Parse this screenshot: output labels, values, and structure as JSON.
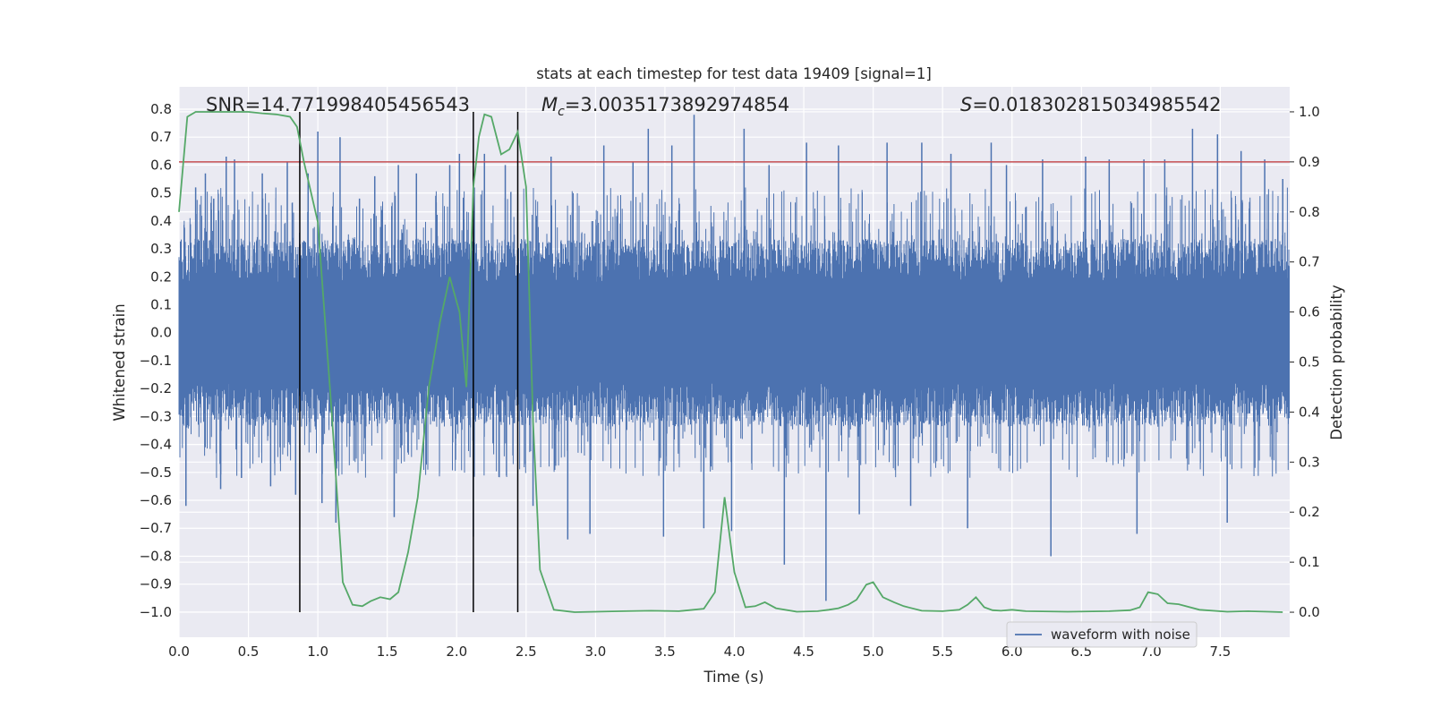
{
  "chart_data": {
    "type": "line",
    "title": "stats at each timestep for test data 19409 [signal=1]",
    "xlabel": "Time (s)",
    "ylabel_left": "Whitened strain",
    "ylabel_right": "Detection probability",
    "xlim": [
      0.0,
      8.0
    ],
    "ylim_left": [
      -1.09,
      0.88
    ],
    "ylim_right": [
      -0.05,
      1.05
    ],
    "x_ticks": [
      "0.0",
      "0.5",
      "1.0",
      "1.5",
      "2.0",
      "2.5",
      "3.0",
      "3.5",
      "4.0",
      "4.5",
      "5.0",
      "5.5",
      "6.0",
      "6.5",
      "7.0",
      "7.5"
    ],
    "y_ticks_left": [
      "0.8",
      "0.7",
      "0.6",
      "0.5",
      "0.4",
      "0.3",
      "0.2",
      "0.1",
      "0.0",
      "−0.1",
      "−0.2",
      "−0.3",
      "−0.4",
      "−0.5",
      "−0.6",
      "−0.7",
      "−0.8",
      "−0.9",
      "−1.0"
    ],
    "y_ticks_right": [
      "1.0",
      "0.9",
      "0.8",
      "0.7",
      "0.6",
      "0.5",
      "0.4",
      "0.3",
      "0.2",
      "0.1",
      "0.0"
    ],
    "grid": true,
    "legend": {
      "placement": "lower-right",
      "entries": [
        "waveform with noise"
      ]
    },
    "annotations": {
      "snr": "SNR=14.771998405456543",
      "mc_sym": "M",
      "mc_sub": "c",
      "mc_val": "=3.0035173892974854",
      "s_sym": "S",
      "s_val": "=0.018302815034985542"
    },
    "threshold_right": 0.9,
    "vertical_lines_x": [
      0.87,
      2.12,
      2.44
    ],
    "vertical_lines_range_right": [
      0.0,
      1.0
    ],
    "waveform": {
      "name": "waveform with noise",
      "envelope_typical": [
        -0.32,
        0.32
      ],
      "spike_peaks": [
        [
          0.05,
          -0.62
        ],
        [
          0.12,
          0.52
        ],
        [
          0.19,
          0.57
        ],
        [
          0.25,
          0.48
        ],
        [
          0.3,
          -0.56
        ],
        [
          0.34,
          0.63
        ],
        [
          0.4,
          0.62
        ],
        [
          0.45,
          -0.52
        ],
        [
          0.6,
          0.57
        ],
        [
          0.66,
          -0.55
        ],
        [
          0.78,
          0.61
        ],
        [
          0.84,
          -0.58
        ],
        [
          0.93,
          0.57
        ],
        [
          1.0,
          0.72
        ],
        [
          1.03,
          -0.61
        ],
        [
          1.13,
          -0.68
        ],
        [
          1.16,
          0.7
        ],
        [
          1.3,
          0.48
        ],
        [
          1.41,
          0.56
        ],
        [
          1.55,
          -0.66
        ],
        [
          1.58,
          0.6
        ],
        [
          1.71,
          0.57
        ],
        [
          1.85,
          0.49
        ],
        [
          1.95,
          0.6
        ],
        [
          2.02,
          0.64
        ],
        [
          2.12,
          -0.73
        ],
        [
          2.2,
          0.64
        ],
        [
          2.35,
          0.6
        ],
        [
          2.55,
          -0.62
        ],
        [
          2.68,
          0.63
        ],
        [
          2.8,
          -0.74
        ],
        [
          2.96,
          -0.72
        ],
        [
          3.06,
          0.67
        ],
        [
          3.27,
          0.61
        ],
        [
          3.38,
          0.73
        ],
        [
          3.49,
          -0.73
        ],
        [
          3.55,
          0.67
        ],
        [
          3.71,
          0.78
        ],
        [
          3.78,
          -0.7
        ],
        [
          3.98,
          -0.71
        ],
        [
          4.07,
          0.73
        ],
        [
          4.25,
          0.6
        ],
        [
          4.36,
          -0.83
        ],
        [
          4.52,
          0.68
        ],
        [
          4.66,
          -0.96
        ],
        [
          4.75,
          0.67
        ],
        [
          4.9,
          -0.65
        ],
        [
          5.1,
          0.68
        ],
        [
          5.27,
          -0.62
        ],
        [
          5.35,
          0.68
        ],
        [
          5.56,
          0.64
        ],
        [
          5.68,
          -0.7
        ],
        [
          5.85,
          0.68
        ],
        [
          5.96,
          0.6
        ],
        [
          6.22,
          0.62
        ],
        [
          6.28,
          -0.8
        ],
        [
          6.53,
          0.63
        ],
        [
          6.7,
          0.62
        ],
        [
          6.9,
          -0.72
        ],
        [
          6.95,
          0.62
        ],
        [
          7.1,
          0.62
        ],
        [
          7.3,
          0.73
        ],
        [
          7.48,
          0.71
        ],
        [
          7.55,
          -0.68
        ],
        [
          7.65,
          0.65
        ],
        [
          7.82,
          0.62
        ],
        [
          7.95,
          0.55
        ]
      ]
    },
    "detection_probability": {
      "x": [
        0.0,
        0.06,
        0.12,
        0.2,
        0.3,
        0.4,
        0.5,
        0.6,
        0.7,
        0.8,
        0.85,
        0.9,
        1.0,
        1.1,
        1.18,
        1.25,
        1.32,
        1.38,
        1.45,
        1.52,
        1.58,
        1.65,
        1.72,
        1.8,
        1.88,
        1.95,
        2.02,
        2.07,
        2.12,
        2.16,
        2.2,
        2.25,
        2.32,
        2.38,
        2.44,
        2.5,
        2.55,
        2.6,
        2.7,
        2.85,
        3.0,
        3.2,
        3.4,
        3.6,
        3.78,
        3.86,
        3.93,
        4.0,
        4.08,
        4.15,
        4.22,
        4.3,
        4.45,
        4.6,
        4.68,
        4.75,
        4.82,
        4.88,
        4.95,
        5.0,
        5.07,
        5.15,
        5.22,
        5.35,
        5.5,
        5.62,
        5.68,
        5.74,
        5.8,
        5.86,
        5.92,
        6.0,
        6.1,
        6.4,
        6.7,
        6.85,
        6.92,
        6.98,
        7.05,
        7.12,
        7.2,
        7.35,
        7.55,
        7.7,
        7.85,
        7.95
      ],
      "y": [
        0.8,
        0.99,
        1.0,
        1.0,
        1.0,
        1.0,
        1.0,
        0.997,
        0.995,
        0.99,
        0.97,
        0.9,
        0.78,
        0.4,
        0.06,
        0.015,
        0.012,
        0.022,
        0.03,
        0.026,
        0.04,
        0.12,
        0.23,
        0.45,
        0.58,
        0.67,
        0.6,
        0.45,
        0.85,
        0.95,
        0.995,
        0.99,
        0.915,
        0.925,
        0.96,
        0.85,
        0.38,
        0.085,
        0.005,
        0.0,
        0.001,
        0.002,
        0.003,
        0.002,
        0.007,
        0.04,
        0.23,
        0.08,
        0.01,
        0.012,
        0.02,
        0.008,
        0.001,
        0.002,
        0.005,
        0.008,
        0.015,
        0.025,
        0.055,
        0.06,
        0.03,
        0.02,
        0.012,
        0.003,
        0.002,
        0.005,
        0.015,
        0.03,
        0.01,
        0.004,
        0.003,
        0.005,
        0.002,
        0.001,
        0.002,
        0.004,
        0.01,
        0.04,
        0.036,
        0.018,
        0.016,
        0.005,
        0.001,
        0.002,
        0.001,
        0.0
      ]
    },
    "colors": {
      "waveform": "#4c72b0",
      "probability": "#55a868",
      "threshold": "#c44e52",
      "vlines": "#000000",
      "background": "#eaeaf2",
      "grid": "#ffffff"
    }
  }
}
